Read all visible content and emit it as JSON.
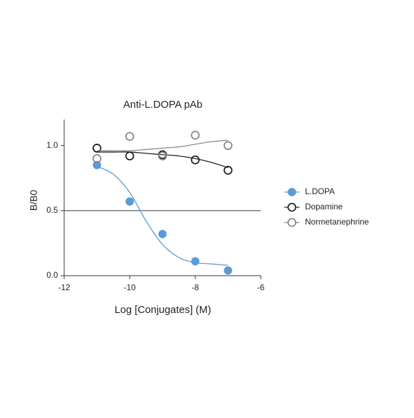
{
  "chart_data": {
    "type": "scatter",
    "title": "Anti-L.DOPA pAb",
    "x_label": "Log [Conjugates] (M)",
    "y_label": "B/B0",
    "x": [
      -11,
      -10,
      -9,
      -8,
      -7
    ],
    "fit_x": [
      -11,
      -10.5,
      -10,
      -9.5,
      -9,
      -8.5,
      -8,
      -7.5,
      -7
    ],
    "series": [
      {
        "name": "L.DOPA",
        "color": "#5b9bd5",
        "marker": "filled",
        "values": [
          0.85,
          0.57,
          0.32,
          0.11,
          0.04
        ],
        "fit": [
          0.84,
          0.78,
          0.64,
          0.42,
          0.24,
          0.14,
          0.1,
          0.09,
          0.08
        ]
      },
      {
        "name": "Dopamine",
        "color": "#222222",
        "marker": "open",
        "values": [
          0.98,
          0.92,
          0.93,
          0.89,
          0.81
        ],
        "fit": [
          0.95,
          0.95,
          0.95,
          0.94,
          0.93,
          0.92,
          0.9,
          0.87,
          0.83
        ]
      },
      {
        "name": "Normetanephrine",
        "color": "#888888",
        "marker": "open",
        "values": [
          0.9,
          1.07,
          0.92,
          1.08,
          1.0
        ],
        "fit": [
          0.96,
          0.96,
          0.96,
          0.97,
          0.98,
          0.99,
          1.01,
          1.03,
          1.04
        ]
      }
    ],
    "xlim": [
      -12,
      -6
    ],
    "xticks": [
      -12,
      -10,
      -8,
      -6
    ],
    "ylim": [
      0,
      1.2
    ],
    "yticks": [
      {
        "value": 0,
        "label": "0.0"
      },
      0.5,
      {
        "value": 1,
        "label": "1.0"
      }
    ],
    "hline": 0.5,
    "legend": "right"
  }
}
